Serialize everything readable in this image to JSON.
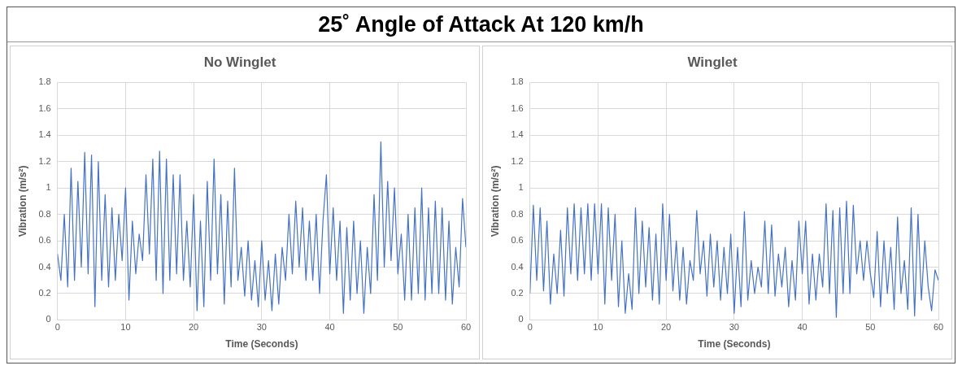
{
  "chart_data": [
    {
      "type": "line",
      "title": "25˚ Angle of Attack At 120 km/h",
      "subtitle": "No Winglet",
      "xlabel": "Time (Seconds)",
      "ylabel": "Vibration (m/s²)",
      "xlim": [
        0,
        60
      ],
      "xticks": [
        0,
        10,
        20,
        30,
        40,
        50,
        60
      ],
      "ylim": [
        0,
        1.8
      ],
      "yticks": [
        0,
        0.2,
        0.4,
        0.6,
        0.8,
        1,
        1.2,
        1.4,
        1.6,
        1.8
      ],
      "grid": true,
      "legend": false,
      "marker": "none",
      "x": [
        0,
        0.5,
        1,
        1.5,
        2,
        2.5,
        3,
        3.5,
        4,
        4.5,
        5,
        5.5,
        6,
        6.5,
        7,
        7.5,
        8,
        8.5,
        9,
        9.5,
        10,
        10.5,
        11,
        11.5,
        12,
        12.5,
        13,
        13.5,
        14,
        14.5,
        15,
        15.5,
        16,
        16.5,
        17,
        17.5,
        18,
        18.5,
        19,
        19.5,
        20,
        20.5,
        21,
        21.5,
        22,
        22.5,
        23,
        23.5,
        24,
        24.5,
        25,
        25.5,
        26,
        26.5,
        27,
        27.5,
        28,
        28.5,
        29,
        29.5,
        30,
        30.5,
        31,
        31.5,
        32,
        32.5,
        33,
        33.5,
        34,
        34.5,
        35,
        35.5,
        36,
        36.5,
        37,
        37.5,
        38,
        38.5,
        39,
        39.5,
        40,
        40.5,
        41,
        41.5,
        42,
        42.5,
        43,
        43.5,
        44,
        44.5,
        45,
        45.5,
        46,
        46.5,
        47,
        47.5,
        48,
        48.5,
        49,
        49.5,
        50,
        50.5,
        51,
        51.5,
        52,
        52.5,
        53,
        53.5,
        54,
        54.5,
        55,
        55.5,
        56,
        56.5,
        57,
        57.5,
        58,
        58.5,
        59,
        59.5,
        60
      ],
      "series": [
        {
          "color": "#4472c4",
          "values": [
            0.5,
            0.3,
            0.8,
            0.25,
            1.15,
            0.3,
            1.05,
            0.4,
            1.27,
            0.35,
            1.25,
            0.1,
            1.2,
            0.3,
            0.95,
            0.25,
            0.85,
            0.3,
            0.8,
            0.45,
            1.0,
            0.15,
            0.75,
            0.35,
            0.65,
            0.45,
            1.1,
            0.5,
            1.22,
            0.3,
            1.28,
            0.2,
            1.22,
            0.3,
            1.1,
            0.35,
            1.1,
            0.3,
            0.75,
            0.25,
            0.95,
            0.07,
            0.75,
            0.1,
            1.05,
            0.3,
            1.22,
            0.35,
            0.95,
            0.12,
            0.9,
            0.25,
            1.15,
            0.3,
            0.55,
            0.18,
            0.6,
            0.15,
            0.45,
            0.1,
            0.6,
            0.15,
            0.45,
            0.07,
            0.5,
            0.12,
            0.55,
            0.3,
            0.8,
            0.35,
            0.9,
            0.4,
            0.85,
            0.3,
            0.75,
            0.3,
            0.8,
            0.2,
            0.75,
            1.1,
            0.35,
            0.85,
            0.3,
            0.75,
            0.05,
            0.7,
            0.15,
            0.75,
            0.2,
            0.6,
            0.05,
            0.55,
            0.2,
            0.95,
            0.3,
            1.35,
            0.4,
            1.05,
            0.45,
            1.0,
            0.35,
            0.65,
            0.15,
            0.8,
            0.15,
            0.85,
            0.2,
            1.0,
            0.15,
            0.85,
            0.2,
            0.9,
            0.2,
            0.85,
            0.15,
            0.75,
            0.12,
            0.55,
            0.25,
            0.92,
            0.55
          ]
        }
      ]
    },
    {
      "type": "line",
      "subtitle": "Winglet",
      "xlabel": "Time (Seconds)",
      "ylabel": "Vibration (m/s²)",
      "xlim": [
        0,
        60
      ],
      "xticks": [
        0,
        10,
        20,
        30,
        40,
        50,
        60
      ],
      "ylim": [
        0,
        1.8
      ],
      "yticks": [
        0,
        0.2,
        0.4,
        0.6,
        0.8,
        1,
        1.2,
        1.4,
        1.6,
        1.8
      ],
      "grid": true,
      "legend": false,
      "marker": "none",
      "x": [
        0,
        0.5,
        1,
        1.5,
        2,
        2.5,
        3,
        3.5,
        4,
        4.5,
        5,
        5.5,
        6,
        6.5,
        7,
        7.5,
        8,
        8.5,
        9,
        9.5,
        10,
        10.5,
        11,
        11.5,
        12,
        12.5,
        13,
        13.5,
        14,
        14.5,
        15,
        15.5,
        16,
        16.5,
        17,
        17.5,
        18,
        18.5,
        19,
        19.5,
        20,
        20.5,
        21,
        21.5,
        22,
        22.5,
        23,
        23.5,
        24,
        24.5,
        25,
        25.5,
        26,
        26.5,
        27,
        27.5,
        28,
        28.5,
        29,
        29.5,
        30,
        30.5,
        31,
        31.5,
        32,
        32.5,
        33,
        33.5,
        34,
        34.5,
        35,
        35.5,
        36,
        36.5,
        37,
        37.5,
        38,
        38.5,
        39,
        39.5,
        40,
        40.5,
        41,
        41.5,
        42,
        42.5,
        43,
        43.5,
        44,
        44.5,
        45,
        45.5,
        46,
        46.5,
        47,
        47.5,
        48,
        48.5,
        49,
        49.5,
        50,
        50.5,
        51,
        51.5,
        52,
        52.5,
        53,
        53.5,
        54,
        54.5,
        55,
        55.5,
        56,
        56.5,
        57,
        57.5,
        58,
        58.5,
        59,
        59.5,
        60
      ],
      "series": [
        {
          "color": "#4472c4",
          "values": [
            0.2,
            0.87,
            0.3,
            0.85,
            0.22,
            0.75,
            0.12,
            0.5,
            0.2,
            0.68,
            0.18,
            0.85,
            0.35,
            0.88,
            0.3,
            0.85,
            0.35,
            0.88,
            0.3,
            0.88,
            0.35,
            0.88,
            0.12,
            0.85,
            0.3,
            0.8,
            0.1,
            0.6,
            0.05,
            0.35,
            0.08,
            0.85,
            0.2,
            0.75,
            0.25,
            0.7,
            0.15,
            0.65,
            0.12,
            0.88,
            0.3,
            0.8,
            0.22,
            0.6,
            0.15,
            0.55,
            0.12,
            0.45,
            0.3,
            0.83,
            0.35,
            0.6,
            0.18,
            0.65,
            0.25,
            0.6,
            0.15,
            0.55,
            0.2,
            0.65,
            0.05,
            0.55,
            0.1,
            0.82,
            0.15,
            0.45,
            0.2,
            0.4,
            0.25,
            0.75,
            0.2,
            0.72,
            0.18,
            0.5,
            0.25,
            0.55,
            0.1,
            0.45,
            0.15,
            0.75,
            0.35,
            0.75,
            0.12,
            0.5,
            0.15,
            0.5,
            0.25,
            0.88,
            0.2,
            0.83,
            0.02,
            0.85,
            0.2,
            0.9,
            0.2,
            0.87,
            0.35,
            0.6,
            0.3,
            0.6,
            0.35,
            0.17,
            0.67,
            0.1,
            0.6,
            0.2,
            0.55,
            0.08,
            0.78,
            0.2,
            0.45,
            0.08,
            0.85,
            0.03,
            0.8,
            0.15,
            0.6,
            0.25,
            0.07,
            0.38,
            0.3
          ]
        }
      ]
    }
  ]
}
